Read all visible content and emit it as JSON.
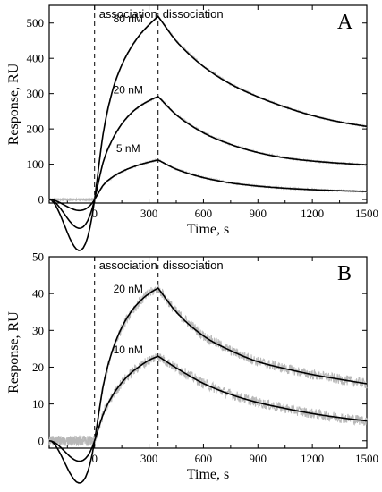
{
  "chart_data": [
    {
      "type": "line",
      "panel": "A",
      "xlabel": "Time, s",
      "ylabel": "Response, RU",
      "xlim": [
        -250,
        1500
      ],
      "ylim": [
        -10,
        550
      ],
      "xticks": [
        0,
        300,
        600,
        900,
        1200,
        1500
      ],
      "yticks": [
        0,
        100,
        200,
        300,
        400,
        500
      ],
      "phases": [
        {
          "label": "association",
          "x": 0
        },
        {
          "label": "dissociation",
          "x": 350
        }
      ],
      "noise": 2.5,
      "series": [
        {
          "name": "80 nM",
          "x": [
            -250,
            0,
            50,
            100,
            150,
            200,
            250,
            300,
            350,
            450,
            600,
            750,
            900,
            1050,
            1200,
            1350,
            1500
          ],
          "y": [
            0,
            0,
            195,
            311,
            381,
            430,
            467,
            495,
            519,
            449,
            377,
            327,
            291,
            262,
            238,
            220,
            207
          ]
        },
        {
          "name": "20 nM",
          "x": [
            -250,
            0,
            50,
            100,
            150,
            200,
            250,
            300,
            350,
            450,
            600,
            750,
            900,
            1050,
            1200,
            1350,
            1500
          ],
          "y": [
            0,
            0,
            110,
            172,
            214,
            244,
            265,
            280,
            292,
            240,
            189,
            156,
            133,
            118,
            109,
            103,
            98
          ]
        },
        {
          "name": "5 nM",
          "x": [
            -250,
            0,
            50,
            100,
            150,
            200,
            250,
            300,
            350,
            450,
            600,
            750,
            900,
            1050,
            1200,
            1350,
            1500
          ],
          "y": [
            0,
            0,
            42,
            64,
            79,
            90,
            99,
            106,
            112,
            86,
            62,
            47,
            38,
            32,
            28,
            25,
            23
          ]
        }
      ]
    },
    {
      "type": "line",
      "panel": "B",
      "xlabel": "Time, s",
      "ylabel": "Response, RU",
      "xlim": [
        -250,
        1500
      ],
      "ylim": [
        -2,
        50
      ],
      "xticks": [
        0,
        300,
        600,
        900,
        1200,
        1500
      ],
      "yticks": [
        0,
        10,
        20,
        30,
        40,
        50
      ],
      "phases": [
        {
          "label": "association",
          "x": 0
        },
        {
          "label": "dissociation",
          "x": 350
        }
      ],
      "noise": 1.4,
      "series": [
        {
          "name": "20 nM",
          "x": [
            -250,
            0,
            50,
            100,
            150,
            200,
            250,
            300,
            350,
            450,
            600,
            750,
            900,
            1050,
            1200,
            1350,
            1500
          ],
          "y": [
            0,
            0,
            15.5,
            24.8,
            30.8,
            35,
            37.9,
            40,
            41.5,
            35,
            28.5,
            24.5,
            21.5,
            19.6,
            18,
            16.7,
            15.5
          ]
        },
        {
          "name": "10 nM",
          "x": [
            -250,
            0,
            50,
            100,
            150,
            200,
            250,
            300,
            350,
            450,
            600,
            750,
            900,
            1050,
            1200,
            1350,
            1500
          ],
          "y": [
            0,
            0,
            7.5,
            12.4,
            15.8,
            18.4,
            20.3,
            21.9,
            23,
            19.8,
            15.6,
            12.6,
            10.4,
            8.8,
            7.4,
            6.3,
            5.4
          ]
        }
      ]
    }
  ]
}
